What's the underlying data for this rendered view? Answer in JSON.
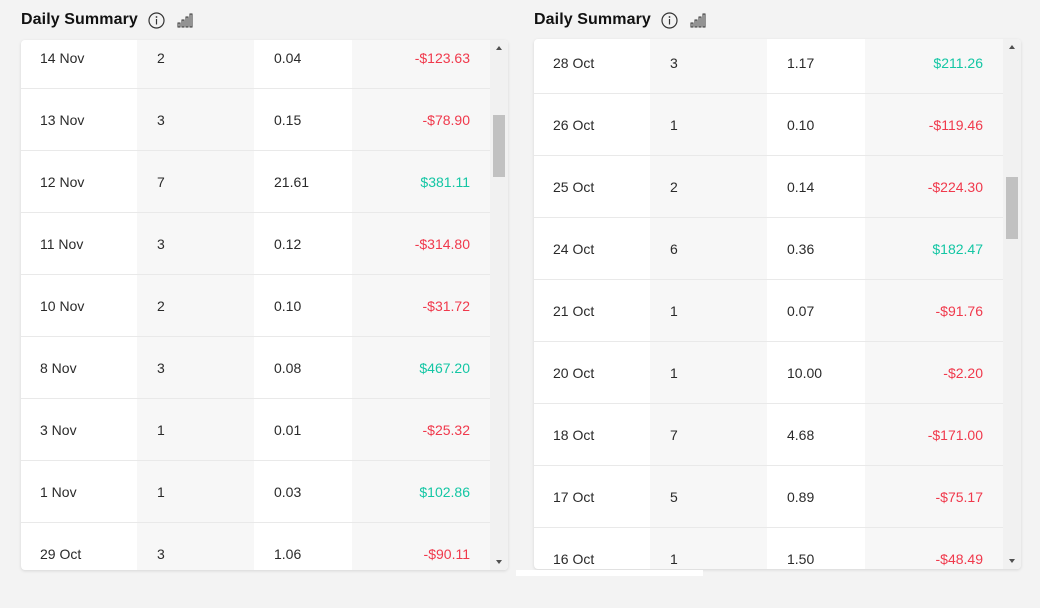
{
  "panels": [
    {
      "title": "Daily Summary",
      "icons": [
        "info-icon",
        "bar-chart-icon"
      ],
      "rows": [
        {
          "date": "14 Nov",
          "trades": "2",
          "lots": "0.04",
          "pnl": "-$123.63",
          "sign": "neg"
        },
        {
          "date": "13 Nov",
          "trades": "3",
          "lots": "0.15",
          "pnl": "-$78.90",
          "sign": "neg"
        },
        {
          "date": "12 Nov",
          "trades": "7",
          "lots": "21.61",
          "pnl": "$381.11",
          "sign": "pos"
        },
        {
          "date": "11 Nov",
          "trades": "3",
          "lots": "0.12",
          "pnl": "-$314.80",
          "sign": "neg"
        },
        {
          "date": "10 Nov",
          "trades": "2",
          "lots": "0.10",
          "pnl": "-$31.72",
          "sign": "neg"
        },
        {
          "date": "8 Nov",
          "trades": "3",
          "lots": "0.08",
          "pnl": "$467.20",
          "sign": "pos"
        },
        {
          "date": "3 Nov",
          "trades": "1",
          "lots": "0.01",
          "pnl": "-$25.32",
          "sign": "neg"
        },
        {
          "date": "1 Nov",
          "trades": "1",
          "lots": "0.03",
          "pnl": "$102.86",
          "sign": "pos"
        },
        {
          "date": "29 Oct",
          "trades": "3",
          "lots": "1.06",
          "pnl": "-$90.11",
          "sign": "neg"
        }
      ]
    },
    {
      "title": "Daily Summary",
      "icons": [
        "info-icon",
        "bar-chart-icon"
      ],
      "rows": [
        {
          "date": "28 Oct",
          "trades": "3",
          "lots": "1.17",
          "pnl": "$211.26",
          "sign": "pos"
        },
        {
          "date": "26 Oct",
          "trades": "1",
          "lots": "0.10",
          "pnl": "-$119.46",
          "sign": "neg"
        },
        {
          "date": "25 Oct",
          "trades": "2",
          "lots": "0.14",
          "pnl": "-$224.30",
          "sign": "neg"
        },
        {
          "date": "24 Oct",
          "trades": "6",
          "lots": "0.36",
          "pnl": "$182.47",
          "sign": "pos"
        },
        {
          "date": "21 Oct",
          "trades": "1",
          "lots": "0.07",
          "pnl": "-$91.76",
          "sign": "neg"
        },
        {
          "date": "20 Oct",
          "trades": "1",
          "lots": "10.00",
          "pnl": "-$2.20",
          "sign": "neg"
        },
        {
          "date": "18 Oct",
          "trades": "7",
          "lots": "4.68",
          "pnl": "-$171.00",
          "sign": "neg"
        },
        {
          "date": "17 Oct",
          "trades": "5",
          "lots": "0.89",
          "pnl": "-$75.17",
          "sign": "neg"
        },
        {
          "date": "16 Oct",
          "trades": "1",
          "lots": "1.50",
          "pnl": "-$48.49",
          "sign": "neg"
        }
      ]
    }
  ],
  "colors": {
    "negative": "#f0394c",
    "positive": "#14c6a4",
    "page_bg": "#f3f3f3"
  }
}
